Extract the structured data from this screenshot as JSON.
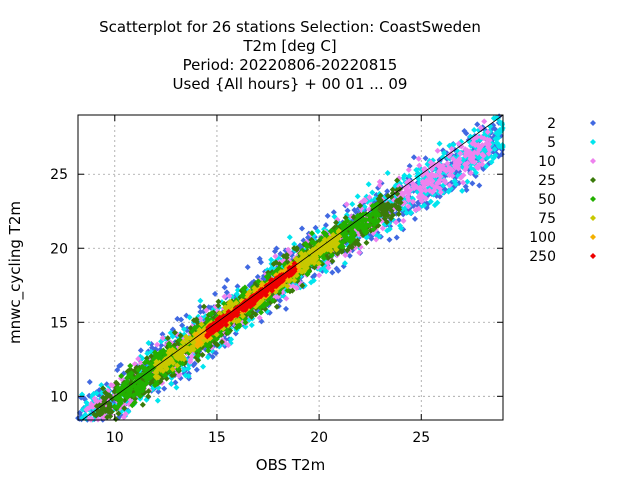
{
  "chart_data": {
    "type": "scatter",
    "title": [
      "Scatterplot for   26 stations Selection: CoastSweden",
      "T2m [deg C]",
      "Period: 20220806-20220815",
      "Used {All hours} + 00 01 ... 09"
    ],
    "xlabel": "OBS T2m",
    "ylabel": "mnwc_cycling T2m",
    "xlim": [
      8.2,
      29
    ],
    "ylim": [
      8.4,
      29
    ],
    "xticks": [
      10,
      15,
      20,
      25
    ],
    "yticks": [
      10,
      15,
      20,
      25
    ],
    "grid": true,
    "diagonal_line": true,
    "legend_position": "right",
    "series": [
      {
        "name": "2",
        "color": "#4169e1",
        "spread": 1.6,
        "xrange": [
          8.2,
          29.0
        ],
        "count": 900
      },
      {
        "name": "5",
        "color": "#00e5ee",
        "spread": 1.4,
        "xrange": [
          8.2,
          29.0
        ],
        "count": 900
      },
      {
        "name": "10",
        "color": "#ee82ee",
        "spread": 1.2,
        "xrange": [
          8.6,
          28.5
        ],
        "count": 800
      },
      {
        "name": "25",
        "color": "#3a7a0a",
        "spread": 1.05,
        "xrange": [
          9.0,
          24.0
        ],
        "count": 750
      },
      {
        "name": "50",
        "color": "#22b000",
        "spread": 0.85,
        "xrange": [
          10.0,
          23.0
        ],
        "count": 700
      },
      {
        "name": "75",
        "color": "#c8c800",
        "spread": 0.55,
        "xrange": [
          12.0,
          21.0
        ],
        "count": 500
      },
      {
        "name": "100",
        "color": "#f4b000",
        "spread": 0.35,
        "xrange": [
          14.0,
          19.0
        ],
        "count": 220
      },
      {
        "name": "250",
        "color": "#ee0000",
        "spread": 0.28,
        "xrange": [
          14.5,
          18.8
        ],
        "count": 300
      }
    ]
  }
}
